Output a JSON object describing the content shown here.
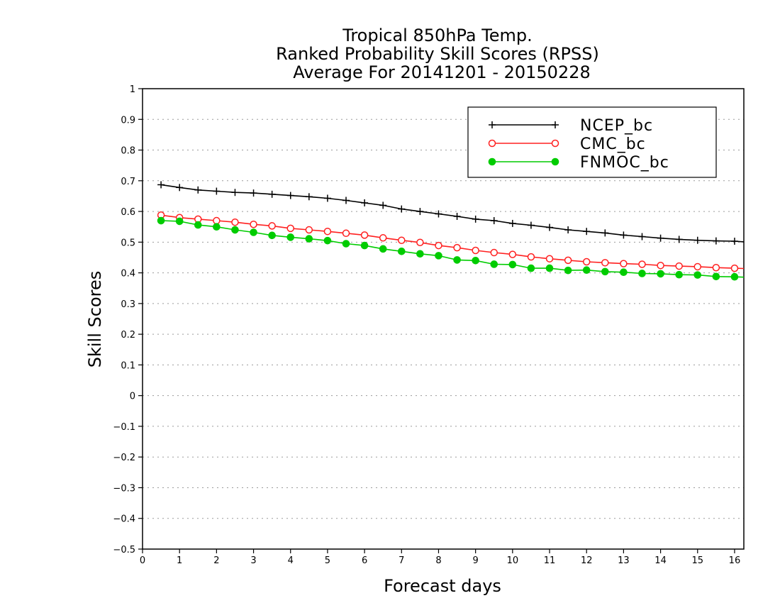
{
  "chart_data": {
    "type": "line",
    "title_lines": [
      "Tropical 850hPa Temp.",
      "Ranked Probability Skill Scores (RPSS)",
      "Average For 20141201 - 20150228"
    ],
    "xlabel": "Forecast days",
    "ylabel": "Skill Scores",
    "xlim": [
      0,
      16.25
    ],
    "ylim": [
      -0.5,
      1
    ],
    "x_ticks": [
      0,
      1,
      2,
      3,
      4,
      5,
      6,
      7,
      8,
      9,
      10,
      11,
      12,
      13,
      14,
      15,
      16
    ],
    "x_tick_labels": [
      "0",
      "1",
      "2",
      "3",
      "4",
      "5",
      "6",
      "7",
      "8",
      "9",
      "10",
      "11",
      "12",
      "13",
      "14",
      "15",
      "16"
    ],
    "y_ticks": [
      1,
      0.9,
      0.8,
      0.7,
      0.6,
      0.5,
      0.4,
      0.3,
      0.2,
      0.1,
      0,
      -0.1,
      -0.2,
      -0.3,
      -0.4,
      -0.5
    ],
    "y_tick_labels": [
      "1",
      "0.9",
      "0.8",
      "0.7",
      "0.6",
      "0.5",
      "0.4",
      "0.3",
      "0.2",
      "0.1",
      "0",
      "−0.1",
      "−0.2",
      "−0.3",
      "−0.4",
      "−0.5"
    ],
    "grid": "horizontal dotted",
    "legend_position": "top-right",
    "x": [
      0.5,
      1,
      1.5,
      2,
      2.5,
      3,
      3.5,
      4,
      4.5,
      5,
      5.5,
      6,
      6.5,
      7,
      7.5,
      8,
      8.5,
      9,
      9.5,
      10,
      10.5,
      11,
      11.5,
      12,
      12.5,
      13,
      13.5,
      14,
      14.5,
      15,
      15.5,
      16,
      16.25
    ],
    "series": [
      {
        "name": "NCEP_bc",
        "color": "#000000",
        "marker": "plus",
        "values": [
          0.687,
          0.678,
          0.67,
          0.666,
          0.662,
          0.66,
          0.656,
          0.652,
          0.648,
          0.643,
          0.636,
          0.628,
          0.62,
          0.608,
          0.6,
          0.592,
          0.584,
          0.575,
          0.57,
          0.561,
          0.555,
          0.548,
          0.54,
          0.535,
          0.53,
          0.523,
          0.518,
          0.513,
          0.509,
          0.506,
          0.504,
          0.503,
          0.501
        ]
      },
      {
        "name": "CMC_bc",
        "color": "#ff2020",
        "marker": "open-circle",
        "values": [
          0.588,
          0.58,
          0.575,
          0.57,
          0.565,
          0.558,
          0.553,
          0.545,
          0.54,
          0.535,
          0.529,
          0.523,
          0.514,
          0.506,
          0.499,
          0.489,
          0.482,
          0.473,
          0.466,
          0.46,
          0.452,
          0.446,
          0.441,
          0.436,
          0.433,
          0.43,
          0.428,
          0.424,
          0.422,
          0.42,
          0.417,
          0.415,
          0.414
        ]
      },
      {
        "name": "FNMOC_bc",
        "color": "#00cc00",
        "marker": "filled-circle",
        "values": [
          0.57,
          0.568,
          0.556,
          0.55,
          0.54,
          0.532,
          0.522,
          0.516,
          0.511,
          0.505,
          0.495,
          0.489,
          0.478,
          0.47,
          0.462,
          0.456,
          0.442,
          0.44,
          0.428,
          0.427,
          0.415,
          0.415,
          0.408,
          0.409,
          0.404,
          0.402,
          0.398,
          0.397,
          0.394,
          0.393,
          0.388,
          0.387,
          0.386
        ]
      }
    ]
  }
}
